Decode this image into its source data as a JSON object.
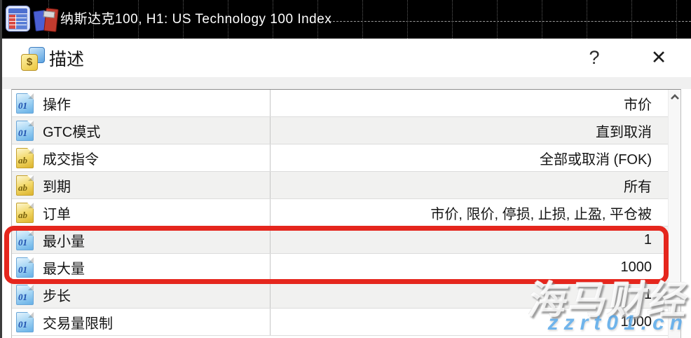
{
  "window": {
    "chart_title": "纳斯达克100, H1:  US Technology 100 Index"
  },
  "dialog": {
    "title": "描述",
    "help_button": "?",
    "close_button": "✕"
  },
  "spec_table": {
    "rows": [
      {
        "icon_type": "01",
        "label": "操作",
        "value": "市价"
      },
      {
        "icon_type": "01",
        "label": "GTC模式",
        "value": "直到取消"
      },
      {
        "icon_type": "ab",
        "label": "成交指令",
        "value": "全部或取消 (FOK)"
      },
      {
        "icon_type": "ab",
        "label": "到期",
        "value": "所有"
      },
      {
        "icon_type": "ab",
        "label": "订单",
        "value": "市价, 限价, 停损, 止损, 止盈, 平仓被"
      },
      {
        "icon_type": "01",
        "label": "最小量",
        "value": "1",
        "highlighted": true
      },
      {
        "icon_type": "01",
        "label": "最大量",
        "value": "1000",
        "highlighted": true
      },
      {
        "icon_type": "01",
        "label": "步长",
        "value": "1"
      },
      {
        "icon_type": "01",
        "label": "交易量限制",
        "value": "1000"
      }
    ]
  },
  "watermark": {
    "brand": "海马财经",
    "site": "zzrt01.cn"
  },
  "colors": {
    "highlight_red": "#e5261d",
    "watermark_blue": "#57a7e8",
    "row_alt_gray": "#f1f1f0",
    "chart_bar_black": "#000000",
    "numeric_icon_blue": "#67b0e6",
    "string_icon_gold": "#dcb42e"
  }
}
